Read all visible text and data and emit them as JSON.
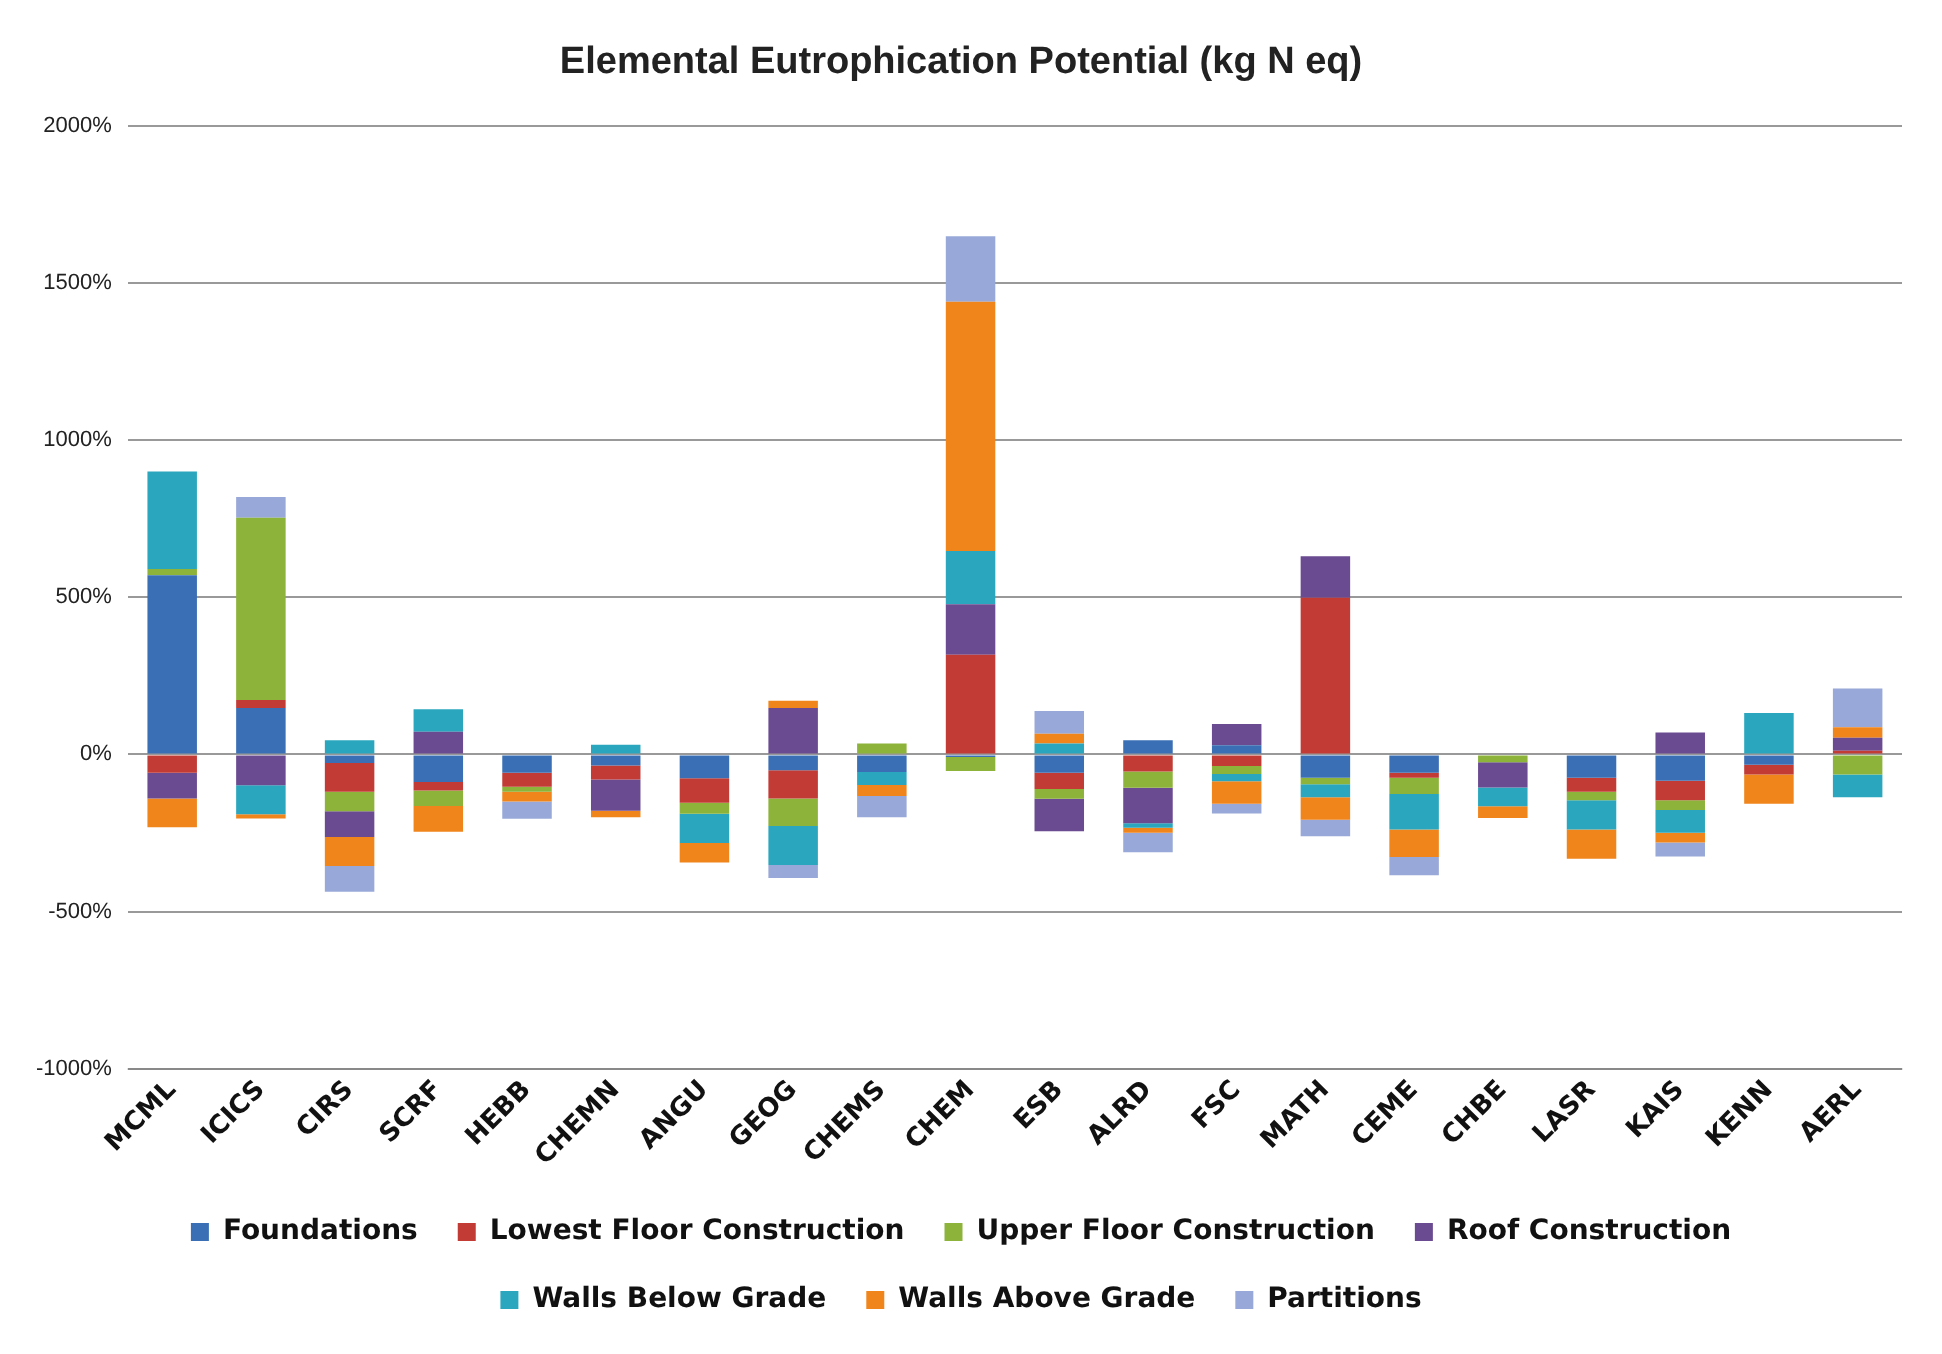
{
  "chart_data": {
    "type": "bar",
    "title": "Elemental Eutrophication Potential (kg N eq)",
    "stacked": true,
    "grid": "y",
    "legend": "bottom",
    "categories": [
      "MCML",
      "ICICS",
      "CIRS",
      "SCRF",
      "HEBB",
      "CHEMN",
      "ANGU",
      "GEOG",
      "CHEMS",
      "CHEM",
      "ESB",
      "ALRD",
      "FSC",
      "MATH",
      "CEME",
      "CHBE",
      "LASR",
      "KAIS",
      "KENN",
      "AERL"
    ],
    "ylim": [
      -1000,
      2000
    ],
    "yticks": [
      {
        "value": -1000,
        "label": "-1000%"
      },
      {
        "value": -500,
        "label": "-500%"
      },
      {
        "value": 0,
        "label": "0%"
      },
      {
        "value": 500,
        "label": "500%"
      },
      {
        "value": 1000,
        "label": "1000%"
      },
      {
        "value": 1500,
        "label": "1500%"
      },
      {
        "value": 2000,
        "label": "2000%"
      }
    ],
    "series": [
      {
        "name": "Foundations",
        "color": "#3a6fb5",
        "values": [
          570,
          148,
          -27,
          -88,
          -58,
          -35,
          -76,
          -50,
          -56,
          -8,
          -58,
          45,
          29,
          -74,
          -58,
          0,
          -74,
          -84,
          -33,
          0
        ]
      },
      {
        "name": "Lowest Floor Construction",
        "color": "#c23b35",
        "values": [
          -58,
          25,
          -92,
          -27,
          -45,
          -45,
          -78,
          -90,
          0,
          317,
          -52,
          -54,
          -37,
          498,
          -16,
          0,
          -45,
          -62,
          -31,
          12
        ]
      },
      {
        "name": "Upper Floor Construction",
        "color": "#8db33a",
        "values": [
          20,
          580,
          -62,
          -49,
          -16,
          0,
          -35,
          -88,
          35,
          -45,
          -31,
          -52,
          -25,
          -21,
          -52,
          -25,
          -27,
          -31,
          0,
          -64
        ]
      },
      {
        "name": "Roof Construction",
        "color": "#6a4a91",
        "values": [
          -82,
          -98,
          -82,
          72,
          0,
          -99,
          0,
          148,
          0,
          161,
          -103,
          -113,
          68,
          132,
          0,
          -80,
          0,
          70,
          0,
          41
        ]
      },
      {
        "name": "Walls Below Grade",
        "color": "#2aa7be",
        "values": [
          310,
          -92,
          45,
          72,
          0,
          31,
          -93,
          -124,
          -41,
          169,
          35,
          -14,
          -23,
          -41,
          -113,
          -60,
          -93,
          -72,
          132,
          -72
        ]
      },
      {
        "name": "Walls Above Grade",
        "color": "#f0851c",
        "values": [
          -92,
          -14,
          -92,
          -82,
          -31,
          -21,
          -62,
          23,
          -35,
          793,
          31,
          -16,
          -72,
          -72,
          -87,
          -37,
          -93,
          -31,
          -93,
          33
        ]
      },
      {
        "name": "Partitions",
        "color": "#98a8d8",
        "values": [
          0,
          66,
          -82,
          0,
          -55,
          0,
          0,
          -41,
          -68,
          208,
          72,
          -62,
          -31,
          -52,
          -58,
          0,
          0,
          -45,
          0,
          124
        ]
      }
    ]
  }
}
